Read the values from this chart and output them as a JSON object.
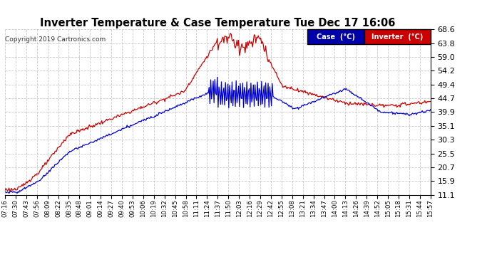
{
  "title": "Inverter Temperature & Case Temperature Tue Dec 17 16:06",
  "copyright": "Copyright 2019 Cartronics.com",
  "legend_case_label": "Case  (°C)",
  "legend_inverter_label": "Inverter  (°C)",
  "case_color": "#0000cc",
  "inverter_color": "#cc0000",
  "legend_case_bg": "#0000aa",
  "legend_inverter_bg": "#cc0000",
  "background_color": "#ffffff",
  "plot_bg_color": "#ffffff",
  "grid_color": "#bbbbbb",
  "ylim": [
    11.1,
    68.6
  ],
  "yticks": [
    11.1,
    15.9,
    20.7,
    25.5,
    30.3,
    35.1,
    39.9,
    44.7,
    49.4,
    54.2,
    59.0,
    63.8,
    68.6
  ]
}
